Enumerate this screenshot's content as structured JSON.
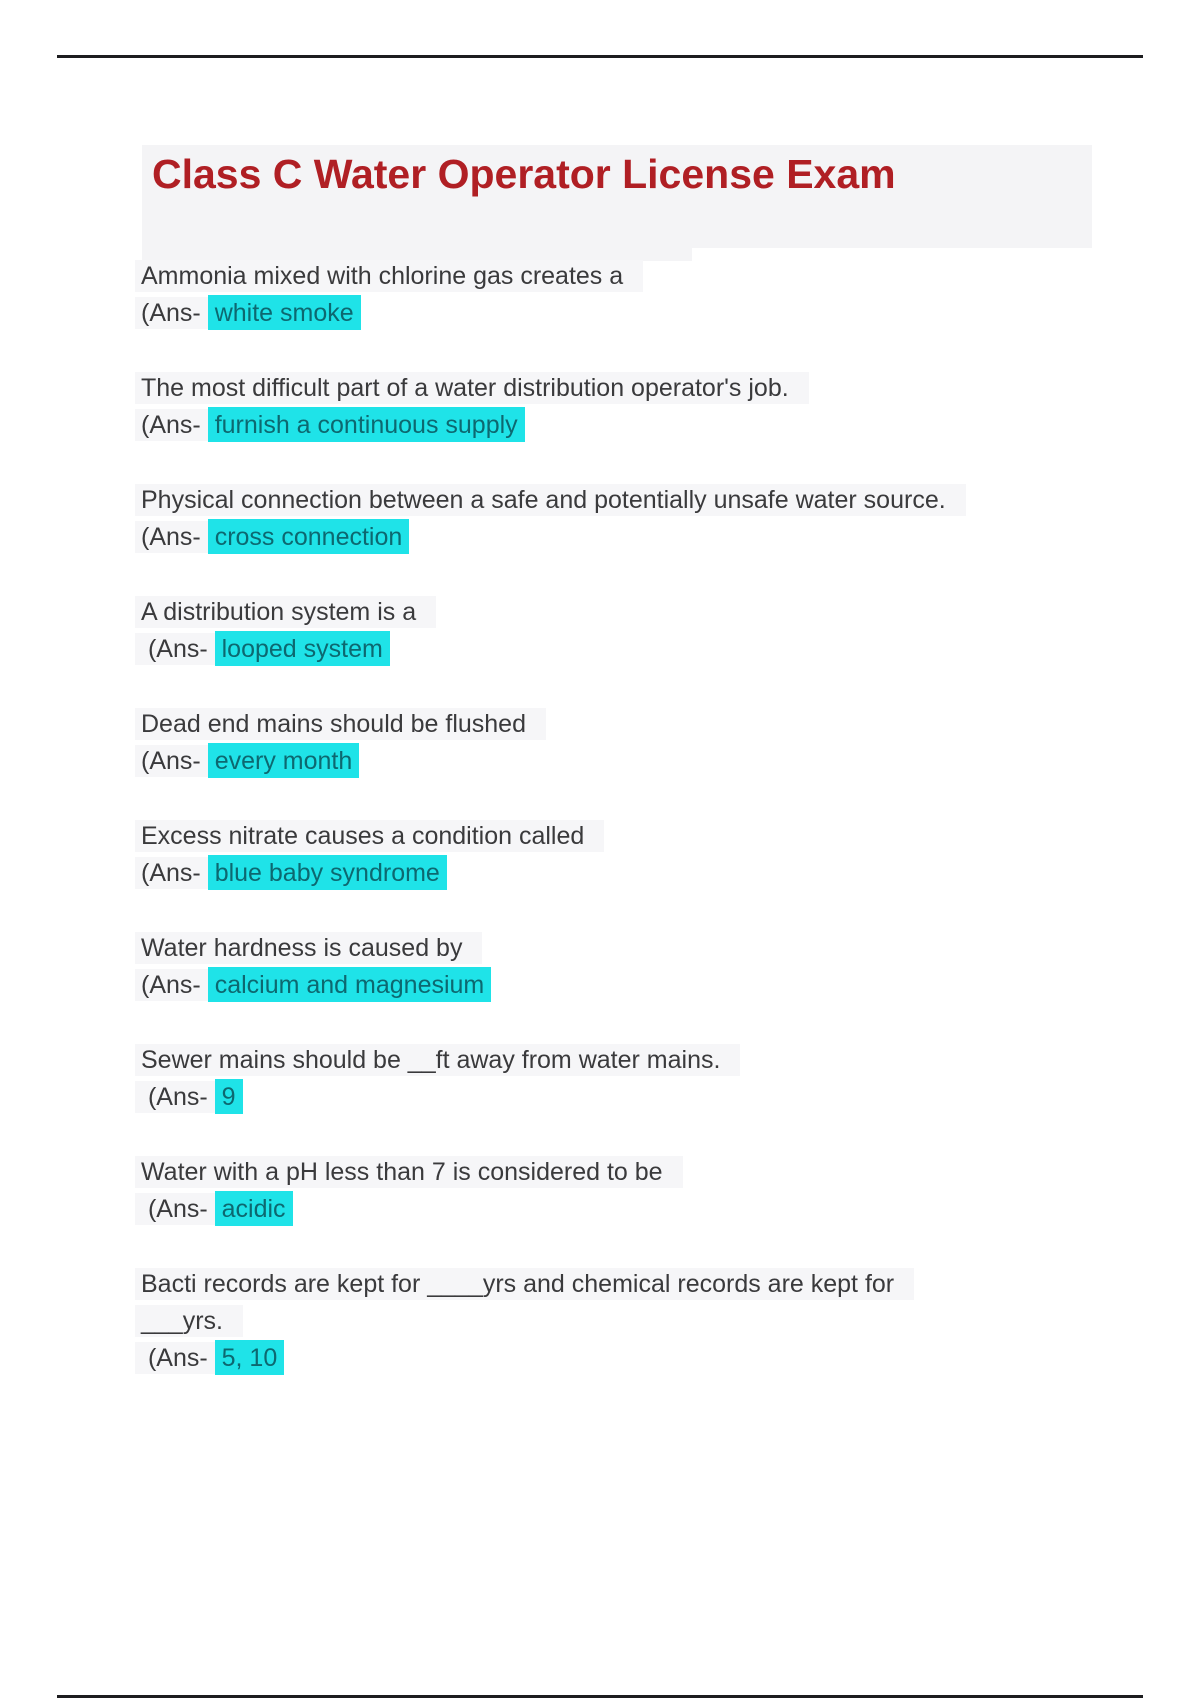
{
  "title": "Class C Water Operator License Exam",
  "colors": {
    "title_text": "#b01f24",
    "highlight_bg": "#1fe3e8",
    "highlight_text": "#0d6870",
    "body_text": "#3a3a3c",
    "divider": "#1d1d1f",
    "title_block_bg": "#f4f4f6"
  },
  "qa": [
    {
      "question": "Ammonia mixed with chlorine gas creates a",
      "prefix": "(Ans- ",
      "answer": "white smoke"
    },
    {
      "question": "The most difficult part of a water distribution operator's job.",
      "prefix": "(Ans- ",
      "answer": "furnish a continuous supply"
    },
    {
      "question": "Physical connection between a safe and potentially unsafe water source.",
      "prefix": "(Ans- ",
      "answer": "cross connection"
    },
    {
      "question": "A distribution system is a",
      "prefix": " (Ans- ",
      "answer": "looped system"
    },
    {
      "question": "Dead end mains should be flushed",
      "prefix": "(Ans- ",
      "answer": "every month"
    },
    {
      "question": "Excess nitrate causes a condition called",
      "prefix": "(Ans- ",
      "answer": "blue baby syndrome"
    },
    {
      "question": "Water hardness is caused by",
      "prefix": "(Ans- ",
      "answer": "calcium and magnesium"
    },
    {
      "question": "Sewer mains should be __ft away from water mains.",
      "prefix": " (Ans- ",
      "answer": "9"
    },
    {
      "question": "Water with a pH less than 7 is considered to be",
      "prefix": " (Ans- ",
      "answer": "acidic"
    },
    {
      "question": "Bacti records are kept for ____yrs and chemical records are kept for",
      "question_line2": "___yrs.",
      "prefix": " (Ans- ",
      "answer": "5, 10"
    }
  ]
}
